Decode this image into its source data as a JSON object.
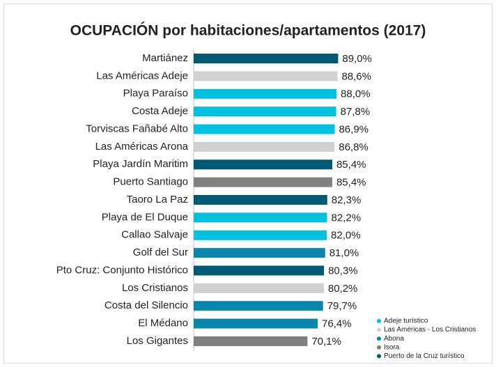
{
  "chart_data": {
    "type": "bar",
    "orientation": "horizontal",
    "title": "OCUPACIÓN por habitaciones/apartamentos (2017)",
    "categories": [
      "Martiánez",
      "Las Américas Adeje",
      "Playa Paraíso",
      "Costa Adeje",
      "Torviscas Fañabé Alto",
      "Las Américas Arona",
      "Playa Jardín Maritim",
      "Puerto Santiago",
      "Taoro La Paz",
      "Playa de El Duque",
      "Callao Salvaje",
      "Golf del Sur",
      "Pto Cruz: Conjunto Histórico",
      "Los Cristianos",
      "Costa del Silencio",
      "El Médano",
      "Los Gigantes"
    ],
    "series": [
      {
        "name": "Adeje turístico",
        "color": "#00c0e0",
        "values": [
          null,
          null,
          88.0,
          87.8,
          86.9,
          null,
          null,
          null,
          null,
          82.2,
          82.0,
          null,
          null,
          null,
          null,
          null,
          null
        ],
        "value_labels": [
          null,
          null,
          "88,0%",
          "87,8%",
          "86,9%",
          null,
          null,
          null,
          null,
          "82,2%",
          "82,0%",
          null,
          null,
          null,
          null,
          null,
          null
        ]
      },
      {
        "name": "Las Américas - Los Cristianos",
        "color": "#d0d0d0",
        "values": [
          null,
          88.6,
          null,
          null,
          null,
          86.8,
          null,
          null,
          null,
          null,
          null,
          null,
          null,
          80.2,
          null,
          null,
          null
        ],
        "value_labels": [
          null,
          "88,6%",
          null,
          null,
          null,
          "86,8%",
          null,
          null,
          null,
          null,
          null,
          null,
          null,
          "80,2%",
          null,
          null,
          null
        ]
      },
      {
        "name": "Abona",
        "color": "#0a86ad",
        "values": [
          null,
          null,
          null,
          null,
          null,
          null,
          null,
          null,
          null,
          null,
          null,
          81.0,
          null,
          null,
          79.7,
          76.4,
          null
        ],
        "value_labels": [
          null,
          null,
          null,
          null,
          null,
          null,
          null,
          null,
          null,
          null,
          null,
          "81,0%",
          null,
          null,
          "79,7%",
          "76,4%",
          null
        ]
      },
      {
        "name": "Isora",
        "color": "#808080",
        "values": [
          null,
          null,
          null,
          null,
          null,
          null,
          null,
          85.4,
          null,
          null,
          null,
          null,
          null,
          null,
          null,
          null,
          70.1
        ],
        "value_labels": [
          null,
          null,
          null,
          null,
          null,
          null,
          null,
          "85,4%",
          null,
          null,
          null,
          null,
          null,
          null,
          null,
          null,
          "70,1%"
        ]
      },
      {
        "name": "Puerto de la Cruz turístico",
        "color": "#005a74",
        "values": [
          89.0,
          null,
          null,
          null,
          null,
          null,
          85.4,
          null,
          82.3,
          null,
          null,
          null,
          80.3,
          null,
          null,
          null,
          null
        ],
        "value_labels": [
          "89,0%",
          null,
          null,
          null,
          null,
          null,
          "85,4%",
          null,
          "82,3%",
          null,
          null,
          null,
          "80,3%",
          null,
          null,
          null,
          null
        ]
      }
    ],
    "xlim": [
      0,
      100
    ],
    "legend": "bottom-right"
  }
}
